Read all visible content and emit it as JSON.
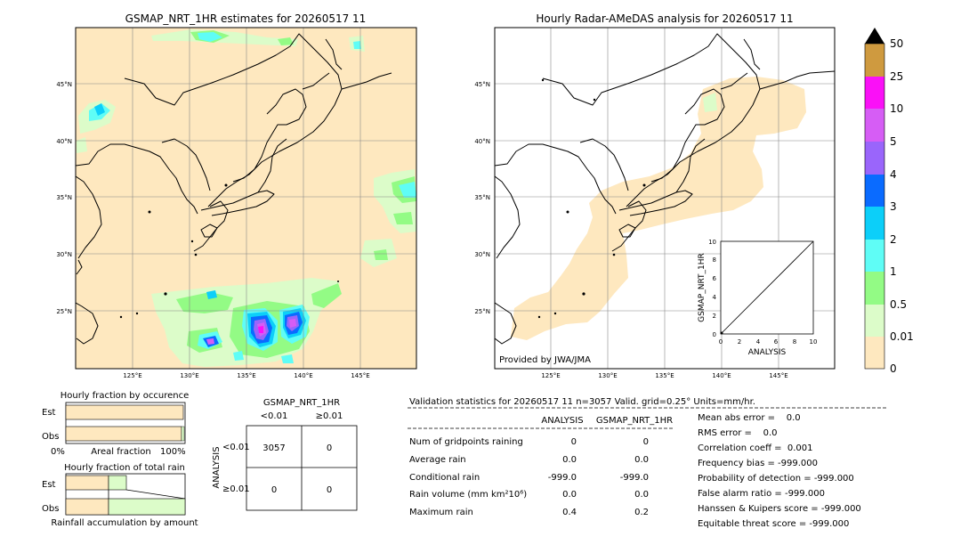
{
  "colors": {
    "land_bg": "#fee8bf",
    "pale_green": "#dcfcc9",
    "green": "#93fb85",
    "cyan_light": "#5ffdf6",
    "cyan": "#0ccff9",
    "blue": "#0a6bff",
    "purple": "#9a65fb",
    "violet": "#d65df5",
    "magenta": "#fa10f7",
    "gold": "#cf9a3f",
    "black": "#000000"
  },
  "map_left": {
    "title": "GSMAP_NRT_1HR estimates for 20260517 11",
    "lat_labels": [
      "45°N",
      "40°N",
      "35°N",
      "30°N",
      "25°N"
    ],
    "lon_labels": [
      "125°E",
      "130°E",
      "135°E",
      "140°E",
      "145°E"
    ]
  },
  "map_right": {
    "title": "Hourly Radar-AMeDAS analysis for 20260517 11",
    "lat_labels": [
      "45°N",
      "40°N",
      "35°N",
      "30°N",
      "25°N"
    ],
    "lon_labels": [
      "125°E",
      "130°E",
      "135°E",
      "140°E",
      "145°E"
    ],
    "credit": "Provided by JWA/JMA"
  },
  "inset_scatter": {
    "xlabel": "ANALYSIS",
    "ylabel": "GSMAP_NRT_1HR",
    "ticks": [
      "0",
      "2",
      "4",
      "6",
      "8",
      "10"
    ]
  },
  "colorbar": {
    "labels": [
      "0",
      "0.01",
      "0.5",
      "1",
      "2",
      "3",
      "4",
      "5",
      "10",
      "25",
      "50"
    ]
  },
  "fraction_occurrence": {
    "title": "Hourly fraction by occurence",
    "rows": [
      "Est",
      "Obs"
    ],
    "axis_left": "0%",
    "axis_mid": "Areal fraction",
    "axis_right": "100%"
  },
  "fraction_total": {
    "title": "Hourly fraction of total rain",
    "rows": [
      "Est",
      "Obs"
    ],
    "caption": "Rainfall accumulation by amount"
  },
  "contingency": {
    "title": "GSMAP_NRT_1HR",
    "col_headers": [
      "<0.01",
      "≥0.01"
    ],
    "row_axis": "ANALYSIS",
    "row_headers": [
      "<0.01",
      "≥0.01"
    ],
    "cells": [
      [
        "3057",
        "0"
      ],
      [
        "0",
        "0"
      ]
    ]
  },
  "validation": {
    "header": "Validation statistics for 20260517 11  n=3057 Valid. grid=0.25° Units=mm/hr.",
    "col_analysis": "ANALYSIS",
    "col_gsmap": "GSMAP_NRT_1HR",
    "rows": [
      {
        "label": "Num of gridpoints raining",
        "analysis": "0",
        "gsmap": "0"
      },
      {
        "label": "Average rain",
        "analysis": "0.0",
        "gsmap": "0.0"
      },
      {
        "label": "Conditional rain",
        "analysis": "-999.0",
        "gsmap": "-999.0"
      },
      {
        "label": "Rain volume (mm km²10⁶)",
        "analysis": "0.0",
        "gsmap": "0.0"
      },
      {
        "label": "Maximum rain",
        "analysis": "0.4",
        "gsmap": "0.2"
      }
    ],
    "scores": [
      "Mean abs error =    0.0",
      "RMS error =    0.0",
      "Correlation coeff =  0.001",
      "Frequency bias = -999.000",
      "Probability of detection = -999.000",
      "False alarm ratio = -999.000",
      "Hanssen & Kuipers score = -999.000",
      "Equitable threat score = -999.000"
    ]
  },
  "chart_data": {
    "type": "heatmap",
    "lon_range": [
      120,
      150
    ],
    "lat_range": [
      20,
      50
    ],
    "colorbar_levels": [
      0,
      0.01,
      0.5,
      1,
      2,
      3,
      4,
      5,
      10,
      25,
      50
    ],
    "contingency_table": [
      [
        3057,
        0
      ],
      [
        0,
        0
      ]
    ],
    "n": 3057,
    "analysis_max_rain": 0.4,
    "gsmap_max_rain": 0.2
  }
}
